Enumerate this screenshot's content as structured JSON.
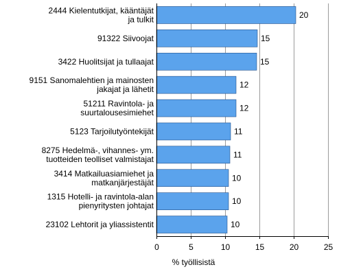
{
  "chart_data": {
    "type": "bar",
    "orientation": "horizontal",
    "categories": [
      [
        "2444 Kielentutkijat, kääntäjät",
        "ja tulkit"
      ],
      [
        "91322 Siivoojat"
      ],
      [
        "3422 Huolitsijat ja tullaajat"
      ],
      [
        "9151 Sanomalehtien ja mainosten",
        "jakajat ja lähetit"
      ],
      [
        "51211 Ravintola- ja",
        "suurtalousesimiehet"
      ],
      [
        "5123 Tarjoilutyöntekijät"
      ],
      [
        "8275 Hedelmä-, vihannes- ym.",
        "tuotteiden teolliset valmistajat"
      ],
      [
        "3414 Matkailuasiamiehet ja",
        "matkanjärjestäjät"
      ],
      [
        "1315 Hotelli- ja ravintola-alan",
        "pienyritysten johtajat"
      ],
      [
        "23102 Lehtorit ja yliassistentit"
      ]
    ],
    "values": [
      20.3,
      14.7,
      14.6,
      11.6,
      11.6,
      10.8,
      10.7,
      10.5,
      10.5,
      10.3
    ],
    "data_labels": [
      "20",
      "15",
      "15",
      "12",
      "12",
      "11",
      "11",
      "10",
      "10",
      "10"
    ],
    "xticks": [
      "0",
      "5",
      "10",
      "15",
      "20",
      "25"
    ],
    "xlim": [
      0,
      25
    ],
    "xlabel": "% työllisistä",
    "title": "",
    "grid": "vertical",
    "bar_color": "#5ba3ec",
    "bar_edge_color": "#1f4e8a"
  }
}
